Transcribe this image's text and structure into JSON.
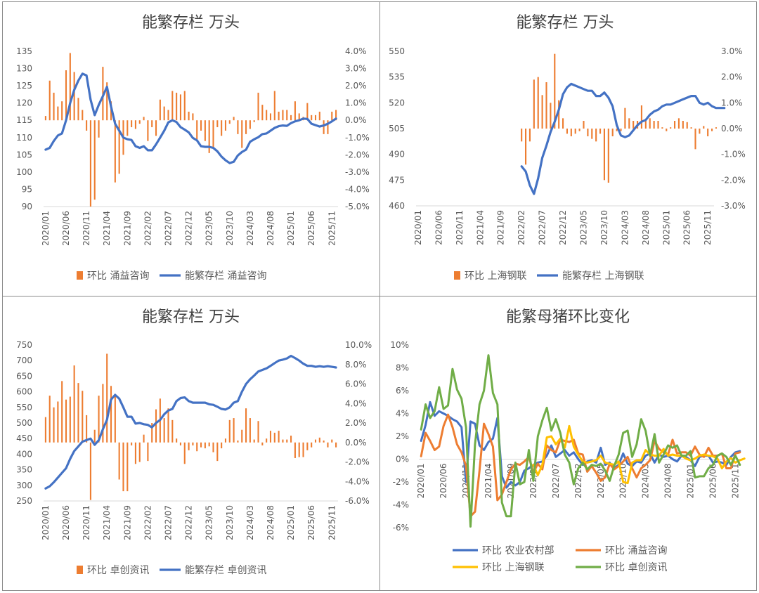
{
  "colors": {
    "bar": "#ED7D31",
    "line": "#4472C4",
    "orange": "#ED7D31",
    "yellow": "#FFC000",
    "green": "#70AD47",
    "blue": "#4472C4",
    "text": "#595959"
  },
  "chart_data": [
    {
      "type": "bar+line",
      "title": "能繁存栏 万头",
      "left_ticks": [
        "135",
        "130",
        "125",
        "120",
        "115",
        "110",
        "105",
        "100",
        "95",
        "90"
      ],
      "right_ticks": [
        "4.0%",
        "3.0%",
        "2.0%",
        "1.0%",
        "0.0%",
        "-1.0%",
        "-2.0%",
        "-3.0%",
        "-4.0%",
        "-5.0%"
      ],
      "ylim_left": [
        90,
        135
      ],
      "ylim_right": [
        -5,
        4
      ],
      "x_labels": [
        "2020/01",
        "2020/06",
        "2020/11",
        "2021/04",
        "2021/09",
        "2022/02",
        "2022/07",
        "2022/12",
        "2023/05",
        "2023/10",
        "2024/03",
        "2024/08",
        "2025/01",
        "2025/06",
        "2025/11"
      ],
      "n_months": 72,
      "bar_series": {
        "name": "环比 涌益咨询",
        "start": 0,
        "values": [
          0.25,
          2.3,
          1.6,
          0.8,
          1.1,
          2.9,
          3.9,
          2.8,
          1.3,
          0.6,
          -0.6,
          -5.0,
          -4.6,
          -1.0,
          3.1,
          2.2,
          1.1,
          -3.6,
          -3.1,
          -2.0,
          -0.9,
          -0.4,
          -0.5,
          -0.2,
          0.2,
          -1.2,
          -0.4,
          -0.9,
          1.2,
          0.8,
          0.6,
          1.7,
          1.6,
          1.5,
          1.7,
          0.5,
          0.4,
          -1.1,
          -0.6,
          -1.2,
          -1.9,
          -1.6,
          -0.4,
          -0.9,
          -0.6,
          -0.2,
          0.2,
          -0.8,
          -1.6,
          -0.8,
          -0.5,
          -0.1,
          1.6,
          0.9,
          0.6,
          0.4,
          1.7,
          0.5,
          0.6,
          0.6,
          0.3,
          1.1,
          0.4,
          0.2,
          1.0,
          0.3,
          0.3,
          0.5,
          -0.8,
          -0.8,
          0.5,
          0.6
        ]
      },
      "line_series": {
        "name": "能繁存栏 涌益咨询",
        "start": 0,
        "values": [
          106.5,
          107,
          109,
          110.6,
          111.2,
          115,
          120,
          123.8,
          126.5,
          128.5,
          128,
          121,
          116.5,
          119.5,
          122,
          124.7,
          119,
          114,
          112,
          110,
          109.5,
          109.3,
          107.5,
          107,
          107.5,
          106.3,
          106.3,
          108,
          110,
          112,
          114.4,
          115,
          114.5,
          113,
          112.3,
          111.5,
          109.9,
          109.2,
          107.5,
          107.3,
          107.3,
          107,
          106,
          104.5,
          103.4,
          102.6,
          103,
          104.8,
          105.8,
          106.5,
          108.8,
          109.5,
          110.1,
          111,
          111.2,
          112,
          112.8,
          113.3,
          113.5,
          113.4,
          114.2,
          114.7,
          115,
          115.5,
          115.4,
          114,
          113.6,
          113.2,
          113.5,
          114,
          114.7,
          115.5
        ]
      },
      "legend": [
        "环比 涌益咨询",
        "能繁存栏 涌益咨询"
      ]
    },
    {
      "type": "bar+line",
      "title": "能繁存栏 万头",
      "left_ticks": [
        "550",
        "535",
        "520",
        "505",
        "490",
        "475",
        "460"
      ],
      "right_ticks": [
        "3.0%",
        "2.0%",
        "1.0%",
        "0.0%",
        "-1.0%",
        "-2.0%",
        "-3.0%"
      ],
      "ylim_left": [
        460,
        550
      ],
      "ylim_right": [
        -3,
        3
      ],
      "x_labels": [
        "2020/01",
        "2020/06",
        "2020/11",
        "2021/04",
        "2021/09",
        "2022/02",
        "2022/07",
        "2022/12",
        "2023/05",
        "2023/10",
        "2024/03",
        "2024/08",
        "2025/01",
        "2025/06",
        "2025/11"
      ],
      "n_months": 72,
      "bar_series": {
        "name": "环比 上海钢联",
        "start": 25,
        "values": [
          -0.5,
          -1.4,
          -0.5,
          1.9,
          2.0,
          1.3,
          1.8,
          1.0,
          2.9,
          1.1,
          0.4,
          -0.2,
          -0.3,
          -0.2,
          -0.1,
          0.3,
          -0.3,
          -0.4,
          -0.5,
          -0.2,
          -2.0,
          -2.1,
          -0.3,
          -0.1,
          -0.1,
          0.8,
          0.4,
          0.3,
          0.3,
          0.9,
          0.3,
          0.4,
          0.3,
          0.3,
          0.05,
          -0.1,
          0.05,
          0.3,
          0.4,
          0.3,
          0.25,
          0.05,
          -0.8,
          -0.2,
          0.1,
          -0.3,
          -0.1,
          0.05
        ]
      },
      "line_series": {
        "name": "能繁存栏 上海钢联",
        "start": 25,
        "values": [
          483,
          480,
          472,
          467,
          476,
          488,
          495,
          503,
          509,
          516,
          525,
          529,
          531,
          530,
          529,
          528,
          527,
          527,
          524,
          524,
          526,
          523,
          518,
          507,
          501,
          500,
          501,
          504,
          507,
          509,
          510,
          513,
          515,
          516,
          518,
          519,
          519,
          520,
          521,
          522,
          523,
          524,
          524,
          520,
          519,
          520,
          518,
          517,
          517,
          517
        ]
      },
      "legend": [
        "环比 上海钢联",
        "能繁存栏 上海钢联"
      ]
    },
    {
      "type": "bar+line",
      "title": "能繁存栏 万头",
      "left_ticks": [
        "750",
        "700",
        "650",
        "600",
        "550",
        "500",
        "450",
        "400",
        "350",
        "300",
        "250"
      ],
      "right_ticks": [
        "10.0%",
        "8.0%",
        "6.0%",
        "4.0%",
        "2.0%",
        "0.0%",
        "-2.0%",
        "-4.0%",
        "-6.0%"
      ],
      "ylim_left": [
        250,
        750
      ],
      "ylim_right": [
        -6,
        10
      ],
      "x_labels": [
        "2020/01",
        "2020/06",
        "2020/11",
        "2021/04",
        "2021/09",
        "2022/02",
        "2022/07",
        "2022/12",
        "2023/05",
        "2023/10",
        "2024/03",
        "2024/08",
        "2025/01",
        "2025/06",
        "2025/11"
      ],
      "n_months": 72,
      "bar_series": {
        "name": "环比 卓创资讯",
        "start": 0,
        "values": [
          2.6,
          4.8,
          3.6,
          4.2,
          6.3,
          4.4,
          4.7,
          7.9,
          6.1,
          5.3,
          2.8,
          -5.9,
          1.3,
          4.8,
          6.0,
          9.1,
          5.8,
          4.8,
          -3.8,
          -5.0,
          -5.0,
          -0.3,
          -2.2,
          -2.0,
          0.8,
          -1.9,
          2.0,
          3.4,
          4.5,
          2.5,
          3.5,
          2.3,
          0.4,
          -0.3,
          -2.2,
          -0.8,
          -0.3,
          -0.9,
          -0.5,
          -0.6,
          -0.4,
          -1.0,
          -1.9,
          -0.6,
          0.4,
          2.3,
          2.5,
          0.2,
          1.3,
          3.5,
          2.5,
          0.3,
          2.2,
          -0.3,
          0.4,
          1.2,
          1.0,
          1.2,
          0.3,
          0.3,
          0.7,
          -1.6,
          -1.5,
          -1.5,
          -0.8,
          -0.5,
          0.3,
          0.5,
          0.2,
          -0.5,
          0.3,
          -0.5
        ]
      },
      "line_series": {
        "name": "能繁存栏 卓创资讯",
        "start": 0,
        "values": [
          290,
          297,
          310,
          325,
          340,
          355,
          385,
          410,
          425,
          440,
          445,
          450,
          430,
          445,
          480,
          510,
          575,
          590,
          578,
          550,
          520,
          520,
          498,
          500,
          496,
          494,
          486,
          500,
          510,
          528,
          540,
          545,
          570,
          580,
          582,
          570,
          565,
          565,
          565,
          565,
          560,
          558,
          552,
          545,
          543,
          550,
          565,
          570,
          600,
          625,
          640,
          652,
          665,
          670,
          675,
          683,
          692,
          700,
          703,
          707,
          715,
          708,
          700,
          690,
          683,
          683,
          680,
          682,
          680,
          682,
          680,
          678
        ]
      },
      "legend": [
        "环比 卓创资讯",
        "能繁存栏 卓创资讯"
      ]
    },
    {
      "type": "line",
      "title": "能繁母猪环比变化",
      "y_ticks": [
        "10%",
        "8%",
        "6%",
        "4%",
        "2%",
        "0%",
        "-2%",
        "-4%",
        "-6%"
      ],
      "ylim": [
        -6,
        10
      ],
      "x_labels": [
        "2020/01",
        "2020/06",
        "2020/11",
        "2021/04",
        "2021/09",
        "2022/02",
        "2022/07",
        "2022/12",
        "2023/05",
        "2023/10",
        "2024/03",
        "2024/08",
        "2025/01",
        "2025/06",
        "2025/11"
      ],
      "n_months": 72,
      "series": [
        {
          "name": "环比 农业农村部",
          "color": "#4472C4",
          "start": 0,
          "values": [
            1.6,
            3.0,
            5.0,
            3.8,
            4.2,
            4.0,
            3.8,
            3.5,
            3.3,
            2.8,
            -2.0,
            3.3,
            3.1,
            1.2,
            0.8,
            1.5,
            1.8,
            3.6,
            -1.5,
            -2.5,
            -2.0,
            -2.3,
            -2.0,
            -1.0,
            -0.8,
            -0.5,
            -0.3,
            -0.2,
            0.3,
            1.2,
            0.2,
            0.5,
            0.8,
            0.3,
            0.6,
            0.0,
            -0.5,
            -0.2,
            -0.1,
            -0.3,
            1.0,
            -0.5,
            -0.3,
            -0.8,
            -0.5,
            0.5,
            -0.4,
            -0.6,
            -0.2,
            -0.3,
            0.3,
            0.5,
            -0.3,
            0.4,
            0.2,
            0.3,
            0.0,
            -0.2,
            0.3,
            0.2,
            -0.1,
            -0.6,
            0.2,
            0.3,
            0.3,
            -0.3,
            -0.2,
            -0.3,
            -0.5,
            0.2,
            0.6,
            0.7
          ]
        },
        {
          "name": "环比 涌益咨询",
          "color": "#ED7D31",
          "start": 0,
          "values": [
            0.25,
            2.3,
            1.6,
            0.8,
            1.1,
            2.9,
            3.9,
            2.8,
            1.3,
            0.6,
            -0.6,
            -5.0,
            -4.6,
            -1.0,
            3.1,
            2.2,
            1.1,
            -3.6,
            -3.1,
            -2.0,
            -0.9,
            -0.4,
            -0.5,
            -0.2,
            0.2,
            -1.2,
            -0.4,
            -0.9,
            1.2,
            0.8,
            0.6,
            1.7,
            1.6,
            1.5,
            1.7,
            0.5,
            0.4,
            -1.1,
            -0.6,
            -1.2,
            -1.9,
            -1.6,
            -0.4,
            -0.9,
            -0.6,
            -0.2,
            0.2,
            -0.8,
            -1.6,
            -0.8,
            -0.5,
            -0.1,
            1.6,
            0.9,
            0.6,
            0.4,
            1.7,
            0.5,
            0.6,
            0.6,
            0.3,
            1.1,
            0.4,
            0.2,
            1.0,
            0.3,
            0.3,
            0.5,
            -0.8,
            -0.8,
            0.5,
            0.6
          ]
        },
        {
          "name": "环比 上海钢联",
          "color": "#FFC000",
          "start": 25,
          "values": [
            -0.5,
            -1.4,
            -0.5,
            1.9,
            2.0,
            1.3,
            1.8,
            1.0,
            2.9,
            1.1,
            0.4,
            -0.2,
            -0.3,
            -0.2,
            -0.1,
            0.3,
            -0.3,
            -0.4,
            -0.5,
            -0.2,
            -2.0,
            -2.1,
            -0.3,
            -0.1,
            -0.1,
            0.8,
            0.4,
            0.3,
            0.3,
            0.9,
            0.3,
            0.4,
            0.3,
            0.3,
            0.05,
            -0.1,
            0.05,
            0.3,
            0.4,
            0.3,
            0.25,
            0.05,
            -0.8,
            -0.2,
            0.1,
            -0.3,
            -0.1,
            0.05
          ]
        },
        {
          "name": "环比 卓创资讯",
          "color": "#70AD47",
          "start": 0,
          "values": [
            2.6,
            4.8,
            3.6,
            4.2,
            6.3,
            4.4,
            4.7,
            7.9,
            6.1,
            5.3,
            2.8,
            -5.9,
            1.3,
            4.8,
            6.0,
            9.1,
            5.8,
            4.8,
            -3.8,
            -5.0,
            -5.0,
            -0.3,
            -2.2,
            -2.0,
            0.8,
            -1.9,
            2.0,
            3.4,
            4.5,
            2.5,
            3.5,
            2.3,
            0.4,
            -0.3,
            -2.2,
            -0.8,
            -0.3,
            -0.9,
            -0.5,
            -0.6,
            -0.4,
            -1.0,
            -1.9,
            -0.6,
            0.4,
            2.3,
            2.5,
            0.2,
            1.3,
            3.5,
            2.5,
            0.3,
            2.2,
            -0.3,
            0.4,
            1.2,
            1.0,
            1.2,
            0.3,
            0.3,
            0.7,
            -1.6,
            -1.5,
            -1.5,
            -0.8,
            -0.5,
            0.3,
            0.5,
            0.2,
            -0.5,
            0.3,
            -0.5
          ]
        }
      ],
      "legend": [
        "环比 农业农村部",
        "环比 涌益咨询",
        "环比 上海钢联",
        "环比 卓创资讯"
      ]
    }
  ]
}
